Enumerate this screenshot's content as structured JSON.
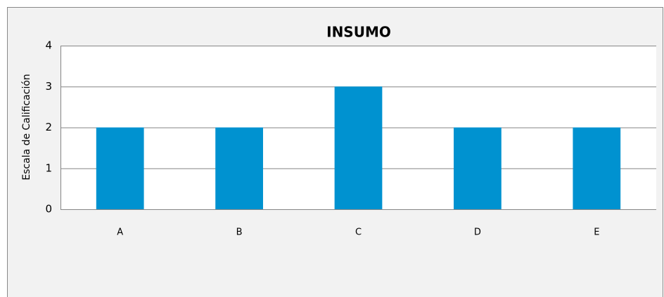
{
  "chart_data": {
    "type": "bar",
    "title": "INSUMO",
    "y_label": "Escala de Calificación",
    "categories": [
      "A",
      "B",
      "C",
      "D",
      "E"
    ],
    "values": [
      2,
      2,
      3,
      2,
      2
    ],
    "color": "#0092d0",
    "ylim": [
      0,
      4
    ],
    "yticks": [
      0,
      1,
      2,
      3,
      4
    ],
    "grid": true
  }
}
